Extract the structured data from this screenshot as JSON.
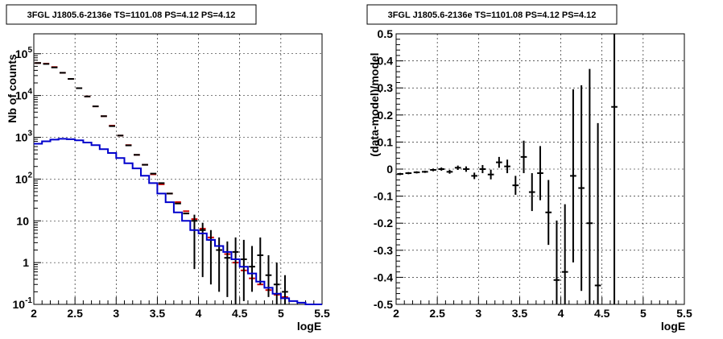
{
  "chart_data": [
    {
      "id": "counts",
      "type": "line",
      "title": "3FGL J1805.6-2136e TS=1101.08 PS=4.12 PS=4.12",
      "xlabel": "logE",
      "ylabel": "Nb of counts",
      "xlim": [
        2,
        5.5
      ],
      "ylim": [
        0.1,
        300000
      ],
      "ylog": true,
      "grid": true,
      "xticks": [
        "2",
        "2.5",
        "3",
        "3.5",
        "4",
        "4.5",
        "5",
        "5.5"
      ],
      "yticks": [
        {
          "v": 0.1,
          "base": "10",
          "exp": "-1"
        },
        {
          "v": 1,
          "base": "1",
          "exp": ""
        },
        {
          "v": 10,
          "base": "10",
          "exp": ""
        },
        {
          "v": 100,
          "base": "10",
          "exp": "2"
        },
        {
          "v": 1000,
          "base": "10",
          "exp": "3"
        },
        {
          "v": 10000,
          "base": "10",
          "exp": "4"
        },
        {
          "v": 100000,
          "base": "10",
          "exp": "5"
        }
      ],
      "bin_width": 0.1,
      "series": [
        {
          "color": "#cc0000",
          "style": "markers",
          "x": [
            2.05,
            2.15,
            2.25,
            2.35,
            2.45,
            2.55,
            2.65,
            2.75,
            2.85,
            2.95,
            3.05,
            3.15,
            3.25,
            3.35,
            3.45,
            3.55,
            3.65,
            3.75,
            3.85,
            3.95,
            4.05,
            4.15,
            4.25,
            4.35,
            4.45,
            4.55,
            4.65,
            4.75,
            4.85,
            4.95,
            5.05
          ],
          "y": [
            60000,
            58000,
            48000,
            35000,
            25000,
            15000,
            9500,
            5500,
            3200,
            1900,
            1100,
            650,
            380,
            220,
            130,
            75,
            45,
            28,
            17,
            11,
            6.5,
            4,
            2.5,
            1.6,
            1.0,
            0.65,
            0.42,
            0.3,
            0.22,
            0.17,
            0.15
          ]
        },
        {
          "color": "#000000",
          "style": "points",
          "x": [
            2.05,
            2.15,
            2.25,
            2.35,
            2.45,
            2.55,
            2.65,
            2.75,
            2.85,
            2.95,
            3.05,
            3.15,
            3.25,
            3.35,
            3.45,
            3.55,
            3.65,
            3.75,
            3.85,
            3.95,
            4.05,
            4.15,
            4.25,
            4.35,
            4.45,
            4.55,
            4.65,
            4.75,
            4.85,
            4.95,
            5.05
          ],
          "y": [
            60000,
            57000,
            47000,
            35000,
            25000,
            15000,
            9500,
            5500,
            3200,
            1850,
            1100,
            640,
            380,
            220,
            135,
            80,
            45,
            26,
            15,
            10,
            6,
            3.5,
            2,
            1.3,
            1.8,
            1.2,
            0.8,
            1.5,
            0.5,
            0.3,
            0.2
          ],
          "err_lo": [
            null,
            null,
            null,
            null,
            null,
            null,
            null,
            null,
            null,
            null,
            null,
            null,
            null,
            null,
            null,
            null,
            null,
            null,
            null,
            0.7,
            0.45,
            0.3,
            0.2,
            0.15,
            0.1,
            0.12,
            0.2,
            0.3,
            0.15,
            0.1,
            null
          ],
          "err_hi": [
            null,
            null,
            null,
            null,
            null,
            null,
            null,
            null,
            null,
            null,
            null,
            null,
            null,
            null,
            null,
            null,
            null,
            null,
            null,
            14,
            9,
            6,
            4,
            3.2,
            4,
            3.5,
            2.5,
            4,
            1.5,
            1.0,
            0.5
          ]
        },
        {
          "color": "#0000cc",
          "style": "step",
          "x": [
            2.05,
            2.15,
            2.25,
            2.35,
            2.45,
            2.55,
            2.65,
            2.75,
            2.85,
            2.95,
            3.05,
            3.15,
            3.25,
            3.35,
            3.45,
            3.55,
            3.65,
            3.75,
            3.85,
            3.95,
            4.05,
            4.15,
            4.25,
            4.35,
            4.45,
            4.55,
            4.65,
            4.75,
            4.85,
            4.95,
            5.05,
            5.15,
            5.25,
            5.35,
            5.45
          ],
          "y": [
            700,
            800,
            880,
            920,
            900,
            850,
            750,
            650,
            520,
            420,
            320,
            240,
            180,
            120,
            80,
            45,
            28,
            16,
            10,
            6,
            5,
            3.5,
            2.5,
            1.8,
            1.2,
            0.8,
            0.55,
            0.35,
            0.25,
            0.18,
            0.14,
            0.12,
            0.11,
            0.1,
            0.1
          ]
        }
      ]
    },
    {
      "id": "residuals",
      "type": "scatter",
      "title": "3FGL J1805.6-2136e TS=1101.08 PS=4.12 PS=4.12",
      "xlabel": "logE",
      "ylabel": "(data-model)/model",
      "xlim": [
        2,
        5.5
      ],
      "ylim": [
        -0.5,
        0.5
      ],
      "grid": true,
      "xticks": [
        "2",
        "2.5",
        "3",
        "3.5",
        "4",
        "4.5",
        "5",
        "5.5"
      ],
      "yticks": [
        "-0.5",
        "-0.4",
        "-0.3",
        "-0.2",
        "-0.1",
        "0",
        "0.1",
        "0.2",
        "0.3",
        "0.4",
        "0.5"
      ],
      "bin_width": 0.1,
      "series": [
        {
          "color": "#000000",
          "x": [
            2.05,
            2.15,
            2.25,
            2.35,
            2.45,
            2.55,
            2.65,
            2.75,
            2.85,
            2.95,
            3.05,
            3.15,
            3.25,
            3.35,
            3.45,
            3.55,
            3.65,
            3.75,
            3.85,
            3.95,
            4.05,
            4.15,
            4.25,
            4.35,
            4.45,
            4.65
          ],
          "y": [
            -0.018,
            -0.015,
            -0.012,
            -0.01,
            -0.003,
            0.0,
            -0.01,
            0.005,
            0.0,
            -0.025,
            0.0,
            -0.02,
            0.025,
            0.01,
            -0.06,
            0.045,
            -0.085,
            -0.015,
            -0.16,
            -0.41,
            -0.38,
            -0.025,
            -0.07,
            -0.2,
            -0.43,
            0.23
          ],
          "err": [
            0.004,
            0.004,
            0.004,
            0.004,
            0.005,
            0.006,
            0.007,
            0.008,
            0.01,
            0.012,
            0.015,
            0.018,
            0.02,
            0.025,
            0.035,
            0.06,
            0.07,
            0.1,
            0.12,
            0.22,
            0.25,
            0.32,
            0.38,
            0.57,
            0.6,
            0.9
          ]
        }
      ]
    }
  ]
}
